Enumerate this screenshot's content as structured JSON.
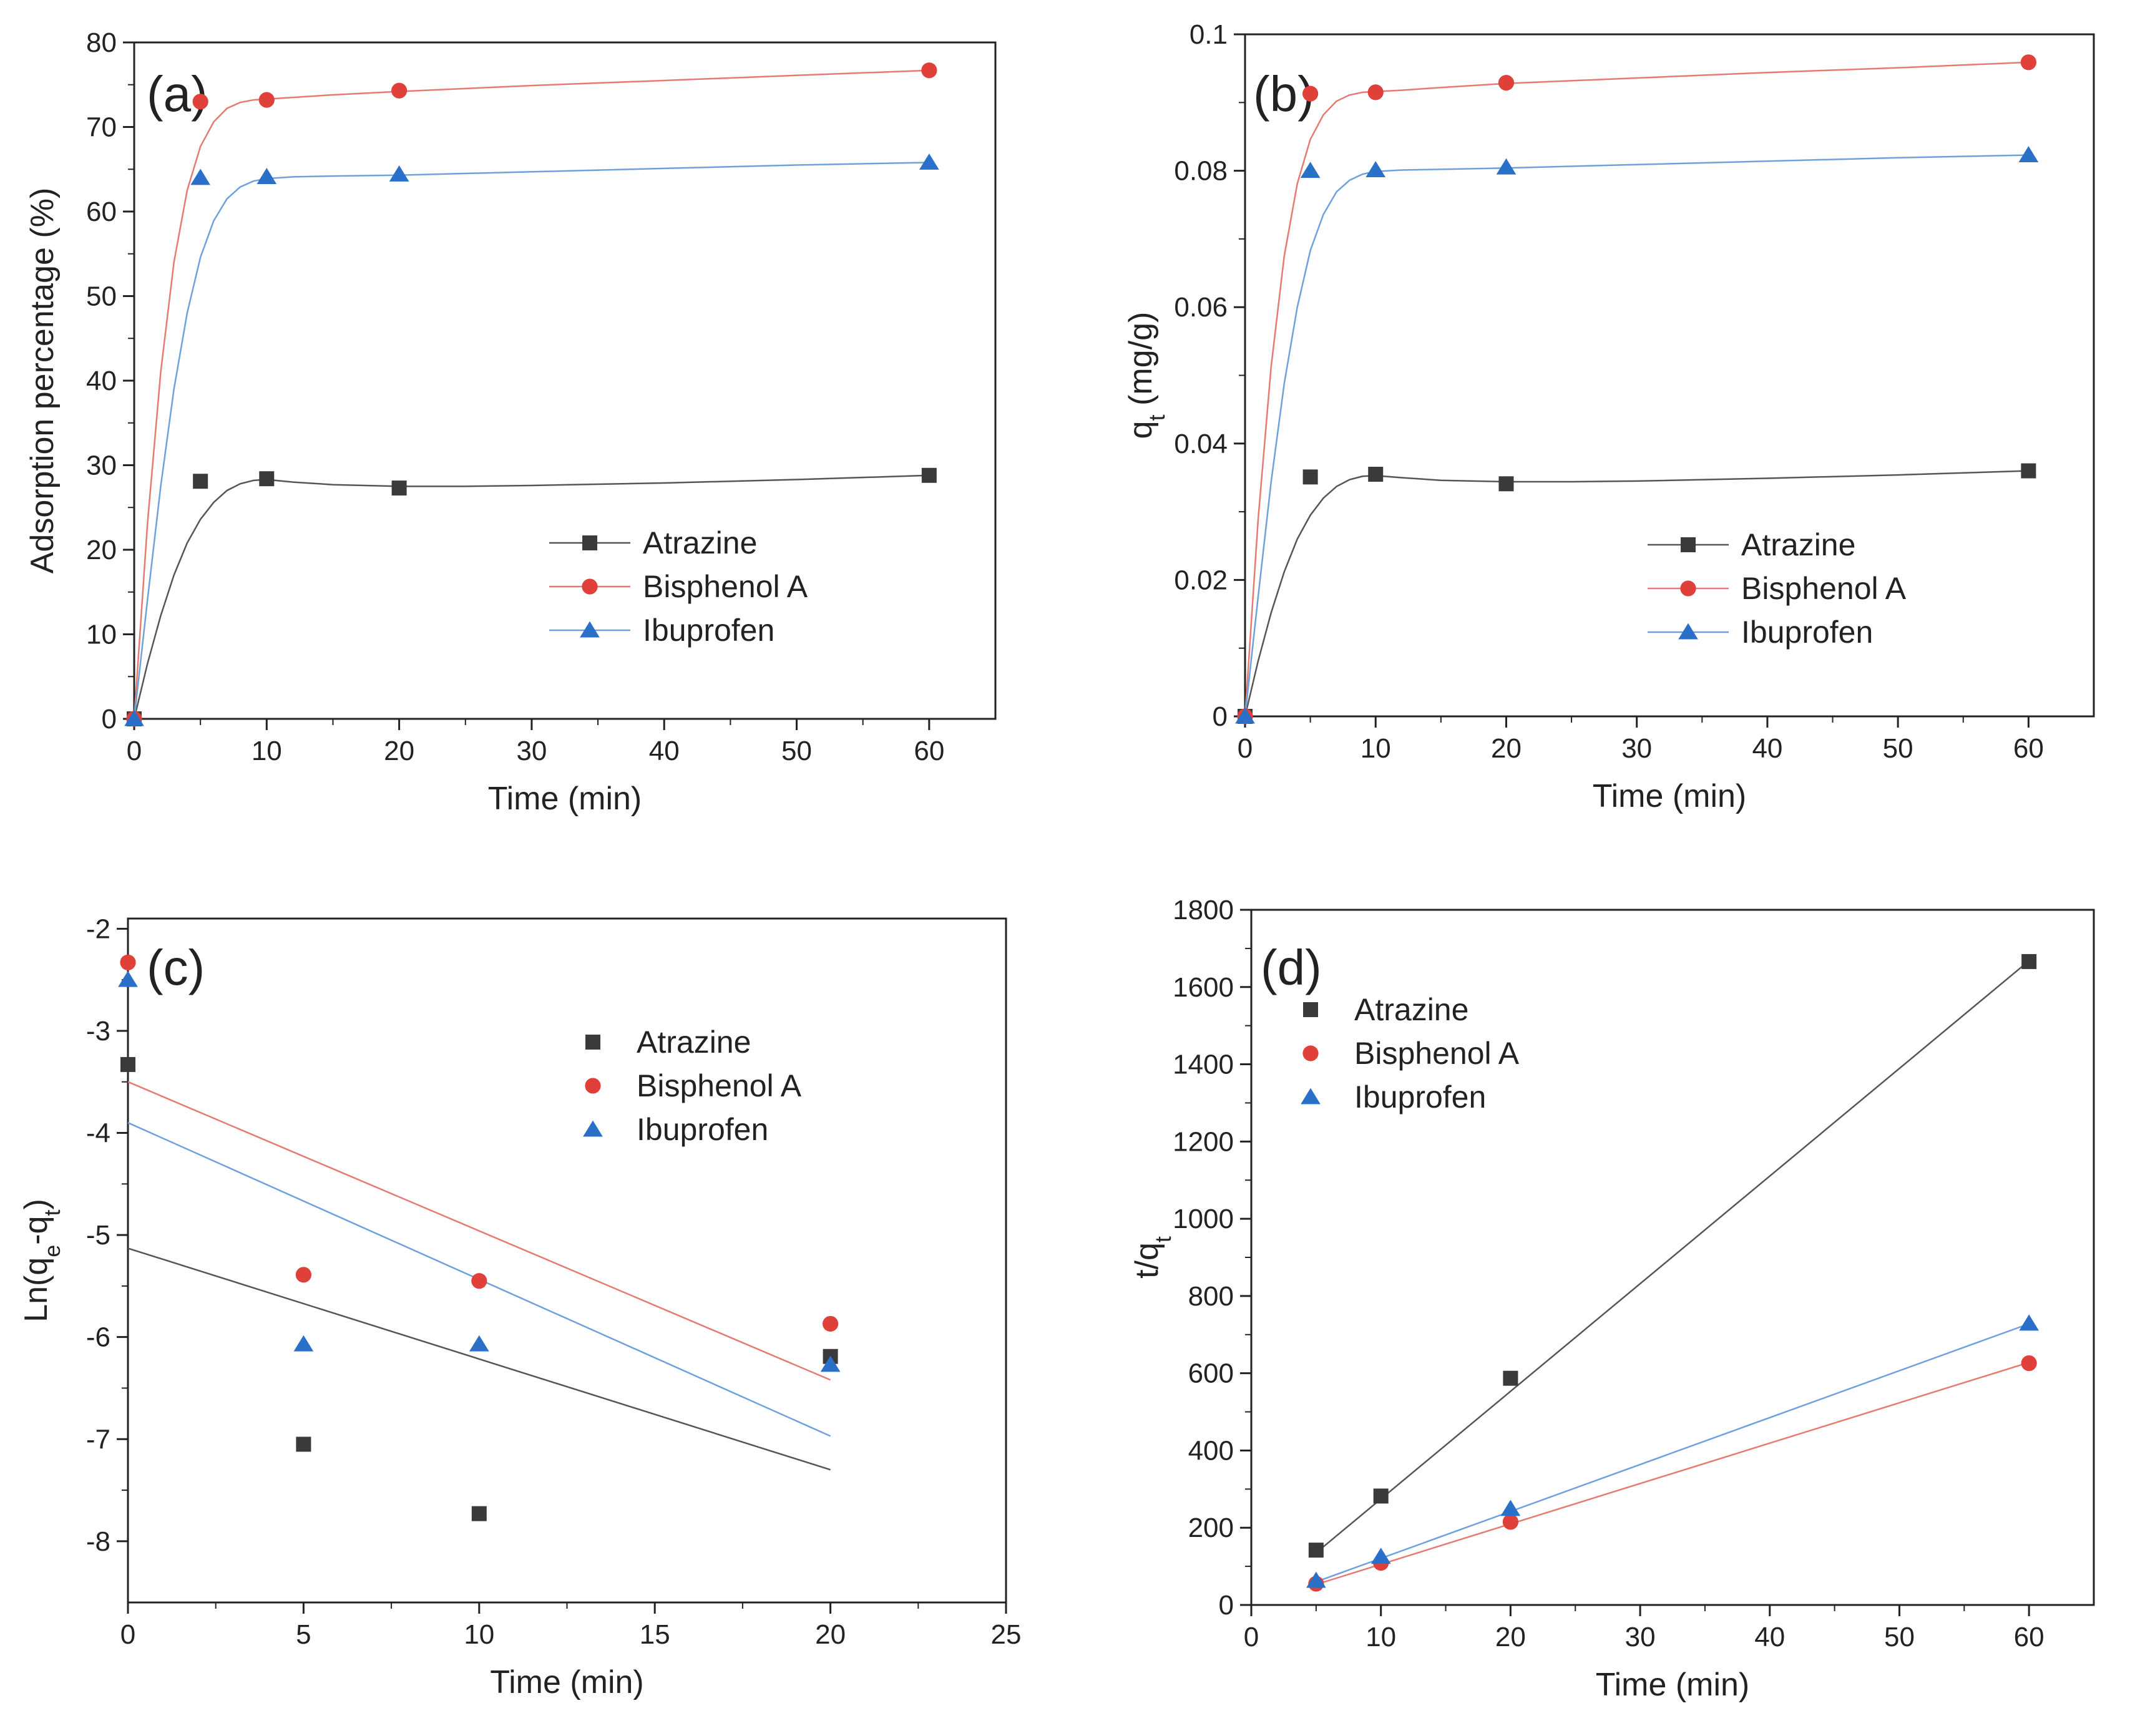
{
  "figure": {
    "description_label": "Adsorption kinetics figure"
  },
  "series_styles": {
    "Atrazine": {
      "color": "#3a3a3a",
      "marker": "square",
      "line_color": "#555555"
    },
    "Bisphenol A": {
      "color": "#e0403a",
      "marker": "circle",
      "line_color": "#e57a72"
    },
    "Ibuprofen": {
      "color": "#2a70c8",
      "marker": "triangle",
      "line_color": "#6ea1dc"
    }
  },
  "chart_data": [
    {
      "id": "a",
      "type": "line",
      "panel_label": "(a)",
      "xlabel": "Time (min)",
      "ylabel": "Adsorption percentage (%)",
      "xlim": [
        0,
        65
      ],
      "ylim": [
        0,
        80
      ],
      "xticks": [
        0,
        10,
        20,
        30,
        40,
        50,
        60
      ],
      "yticks": [
        0,
        10,
        20,
        30,
        40,
        50,
        60,
        70,
        80
      ],
      "xtick_labels": [
        "0",
        "10",
        "20",
        "30",
        "40",
        "50",
        "60"
      ],
      "ytick_labels": [
        "0",
        "10",
        "20",
        "30",
        "40",
        "50",
        "60",
        "70",
        "80"
      ],
      "legend": {
        "position": "lower-right",
        "entries": [
          "Atrazine",
          "Bisphenol A",
          "Ibuprofen"
        ]
      },
      "series": [
        {
          "name": "Atrazine",
          "x": [
            0,
            5,
            10,
            20,
            60
          ],
          "y": [
            0,
            28.1,
            28.4,
            27.3,
            28.8
          ]
        },
        {
          "name": "Bisphenol A",
          "x": [
            0,
            5,
            10,
            20,
            60
          ],
          "y": [
            0,
            73.0,
            73.2,
            74.3,
            76.7
          ]
        },
        {
          "name": "Ibuprofen",
          "x": [
            0,
            5,
            10,
            20,
            60
          ],
          "y": [
            0,
            64.0,
            64.1,
            64.4,
            65.8
          ]
        }
      ],
      "fits": [
        {
          "name": "Atrazine",
          "x": [
            0,
            1,
            2,
            3,
            4,
            5,
            6,
            7,
            8,
            9,
            10,
            12,
            15,
            20,
            25,
            30,
            40,
            50,
            60
          ],
          "y": [
            0,
            6.5,
            12.2,
            17.0,
            20.8,
            23.6,
            25.6,
            27.0,
            27.8,
            28.2,
            28.3,
            28.0,
            27.7,
            27.5,
            27.5,
            27.6,
            27.9,
            28.3,
            28.8
          ]
        },
        {
          "name": "Bisphenol A",
          "x": [
            0,
            1,
            2,
            3,
            4,
            5,
            6,
            7,
            8,
            9,
            10,
            12,
            15,
            20,
            30,
            40,
            50,
            60
          ],
          "y": [
            0,
            23.0,
            41.0,
            54.0,
            62.5,
            67.7,
            70.6,
            72.2,
            72.9,
            73.2,
            73.3,
            73.5,
            73.8,
            74.2,
            74.9,
            75.5,
            76.1,
            76.7
          ]
        },
        {
          "name": "Ibuprofen",
          "x": [
            0,
            1,
            2,
            3,
            4,
            5,
            6,
            7,
            8,
            9,
            10,
            12,
            15,
            20,
            30,
            40,
            50,
            60
          ],
          "y": [
            0,
            14.0,
            27.5,
            39.0,
            48.0,
            54.6,
            58.9,
            61.5,
            62.9,
            63.6,
            63.9,
            64.1,
            64.2,
            64.3,
            64.7,
            65.1,
            65.5,
            65.8
          ]
        }
      ]
    },
    {
      "id": "b",
      "type": "line",
      "panel_label": "(b)",
      "xlabel": "Time (min)",
      "ylabel": "q",
      "ylabel_sub": "t",
      "ylabel_tail": " (mg/g)",
      "xlim": [
        0,
        65
      ],
      "ylim": [
        0,
        0.1
      ],
      "xticks": [
        0,
        10,
        20,
        30,
        40,
        50,
        60
      ],
      "yticks": [
        0,
        0.02,
        0.04,
        0.06,
        0.08,
        0.1
      ],
      "xtick_labels": [
        "0",
        "10",
        "20",
        "30",
        "40",
        "50",
        "60"
      ],
      "ytick_labels": [
        "0",
        "0.02",
        "0.04",
        "0.06",
        "0.08",
        "0.1"
      ],
      "legend": {
        "position": "lower-right",
        "entries": [
          "Atrazine",
          "Bisphenol A",
          "Ibuprofen"
        ]
      },
      "series": [
        {
          "name": "Atrazine",
          "x": [
            0,
            5,
            10,
            20,
            60
          ],
          "y": [
            0,
            0.0351,
            0.0355,
            0.0341,
            0.036
          ]
        },
        {
          "name": "Bisphenol A",
          "x": [
            0,
            5,
            10,
            20,
            60
          ],
          "y": [
            0,
            0.0913,
            0.0915,
            0.0929,
            0.0959
          ]
        },
        {
          "name": "Ibuprofen",
          "x": [
            0,
            5,
            10,
            20,
            60
          ],
          "y": [
            0,
            0.08,
            0.0801,
            0.0805,
            0.0823
          ]
        }
      ],
      "fits": [
        {
          "name": "Atrazine",
          "x": [
            0,
            1,
            2,
            3,
            4,
            5,
            6,
            7,
            8,
            9,
            10,
            12,
            15,
            20,
            25,
            30,
            40,
            50,
            60
          ],
          "y": [
            0,
            0.0081,
            0.0152,
            0.0212,
            0.026,
            0.0295,
            0.032,
            0.0337,
            0.0347,
            0.0352,
            0.0353,
            0.035,
            0.0346,
            0.0344,
            0.0344,
            0.0345,
            0.0349,
            0.0354,
            0.036
          ]
        },
        {
          "name": "Bisphenol A",
          "x": [
            0,
            1,
            2,
            3,
            4,
            5,
            6,
            7,
            8,
            9,
            10,
            12,
            15,
            20,
            30,
            40,
            50,
            60
          ],
          "y": [
            0,
            0.0288,
            0.0513,
            0.0675,
            0.0781,
            0.0846,
            0.0882,
            0.0902,
            0.0911,
            0.0915,
            0.0916,
            0.0918,
            0.0922,
            0.0928,
            0.0936,
            0.0944,
            0.0951,
            0.0959
          ]
        },
        {
          "name": "Ibuprofen",
          "x": [
            0,
            1,
            2,
            3,
            4,
            5,
            6,
            7,
            8,
            9,
            10,
            12,
            15,
            20,
            30,
            40,
            50,
            60
          ],
          "y": [
            0,
            0.0175,
            0.0344,
            0.0488,
            0.06,
            0.0683,
            0.0736,
            0.0769,
            0.0786,
            0.0795,
            0.0799,
            0.0801,
            0.0802,
            0.0804,
            0.0809,
            0.0814,
            0.0819,
            0.0823
          ]
        }
      ]
    },
    {
      "id": "c",
      "type": "scatter",
      "panel_label": "(c)",
      "xlabel": "Time (min)",
      "ylabel": "Ln(q",
      "ylabel_sub": "e",
      "ylabel_mid": "-q",
      "ylabel_sub2": "t",
      "ylabel_tail": ")",
      "xlim": [
        0,
        25
      ],
      "ylim": [
        -8.6,
        -1.9
      ],
      "xticks": [
        0,
        5,
        10,
        15,
        20,
        25
      ],
      "yticks": [
        -8,
        -7,
        -6,
        -5,
        -4,
        -3,
        -2
      ],
      "xtick_labels": [
        "0",
        "5",
        "10",
        "15",
        "20",
        "25"
      ],
      "ytick_labels": [
        "-8",
        "-7",
        "-6",
        "-5",
        "-4",
        "-3",
        "-2"
      ],
      "legend": {
        "position": "upper-right",
        "entries": [
          "Atrazine",
          "Bisphenol A",
          "Ibuprofen"
        ]
      },
      "series": [
        {
          "name": "Atrazine",
          "x": [
            0,
            5,
            10,
            20
          ],
          "y": [
            -3.33,
            -7.05,
            -7.73,
            -6.19
          ]
        },
        {
          "name": "Bisphenol A",
          "x": [
            0,
            5,
            10,
            20
          ],
          "y": [
            -2.33,
            -5.39,
            -5.45,
            -5.87
          ]
        },
        {
          "name": "Ibuprofen",
          "x": [
            0,
            5,
            10,
            20
          ],
          "y": [
            -2.5,
            -6.07,
            -6.07,
            -6.27
          ]
        }
      ],
      "fits": [
        {
          "name": "Atrazine",
          "x": [
            0,
            20
          ],
          "y": [
            -5.13,
            -7.3
          ]
        },
        {
          "name": "Bisphenol A",
          "x": [
            0,
            20
          ],
          "y": [
            -3.5,
            -6.42
          ]
        },
        {
          "name": "Ibuprofen",
          "x": [
            0,
            20
          ],
          "y": [
            -3.9,
            -6.97
          ]
        }
      ]
    },
    {
      "id": "d",
      "type": "scatter",
      "panel_label": "(d)",
      "xlabel": "Time (min)",
      "ylabel": "t/q",
      "ylabel_sub": "t",
      "ylabel_tail": "",
      "xlim": [
        0,
        65
      ],
      "ylim": [
        0,
        1800
      ],
      "xticks": [
        0,
        10,
        20,
        30,
        40,
        50,
        60
      ],
      "yticks": [
        0,
        200,
        400,
        600,
        800,
        1000,
        1200,
        1400,
        1600,
        1800
      ],
      "xtick_labels": [
        "0",
        "10",
        "20",
        "30",
        "40",
        "50",
        "60"
      ],
      "ytick_labels": [
        "0",
        "200",
        "400",
        "600",
        "800",
        "1000",
        "1200",
        "1400",
        "1600",
        "1800"
      ],
      "legend": {
        "position": "upper-left",
        "entries": [
          "Atrazine",
          "Bisphenol A",
          "Ibuprofen"
        ]
      },
      "series": [
        {
          "name": "Atrazine",
          "x": [
            5,
            10,
            20,
            60
          ],
          "y": [
            142,
            282,
            587,
            1666
          ]
        },
        {
          "name": "Bisphenol A",
          "x": [
            5,
            10,
            20,
            60
          ],
          "y": [
            55,
            109,
            215,
            626
          ]
        },
        {
          "name": "Ibuprofen",
          "x": [
            5,
            10,
            20,
            60
          ],
          "y": [
            63,
            125,
            249,
            729
          ]
        }
      ],
      "fits": [
        {
          "name": "Atrazine",
          "x": [
            5,
            60
          ],
          "y": [
            135,
            1668
          ]
        },
        {
          "name": "Bisphenol A",
          "x": [
            5,
            60
          ],
          "y": [
            53,
            628
          ]
        },
        {
          "name": "Ibuprofen",
          "x": [
            5,
            60
          ],
          "y": [
            60,
            728
          ]
        }
      ]
    }
  ]
}
